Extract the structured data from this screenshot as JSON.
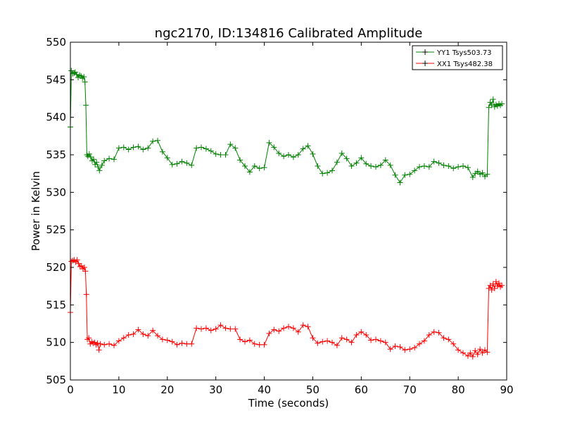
{
  "chart_data": {
    "type": "line",
    "title": "ngc2170, ID:134816 Calibrated Amplitude",
    "xlabel": "Time (seconds)",
    "ylabel": "Power in Kelvin",
    "xlim": [
      0,
      90
    ],
    "ylim": [
      505,
      550
    ],
    "xticks": [
      0,
      10,
      20,
      30,
      40,
      50,
      60,
      70,
      80,
      90
    ],
    "yticks": [
      505,
      510,
      515,
      520,
      525,
      530,
      535,
      540,
      545,
      550
    ],
    "xtick_labels": [
      "0",
      "10",
      "20",
      "30",
      "40",
      "50",
      "60",
      "70",
      "80",
      "90"
    ],
    "ytick_labels": [
      "505",
      "510",
      "515",
      "520",
      "525",
      "530",
      "535",
      "540",
      "545",
      "550"
    ],
    "grid": false,
    "legend_position": "top-right",
    "marker": "+",
    "series": [
      {
        "name": "YY1 Tsys503.73",
        "color": "#008000",
        "points": [
          [
            0,
            538.7
          ],
          [
            0.2,
            546.2
          ],
          [
            0.5,
            545.8
          ],
          [
            0.8,
            545.9
          ],
          [
            1.0,
            546.0
          ],
          [
            1.3,
            545.7
          ],
          [
            1.6,
            545.3
          ],
          [
            1.9,
            545.6
          ],
          [
            2.2,
            545.5
          ],
          [
            2.5,
            545.2
          ],
          [
            2.8,
            545.4
          ],
          [
            3.0,
            544.7
          ],
          [
            3.2,
            541.6
          ],
          [
            3.4,
            535.0
          ],
          [
            3.6,
            534.8
          ],
          [
            3.9,
            535.1
          ],
          [
            4.2,
            534.7
          ],
          [
            4.5,
            534.2
          ],
          [
            4.8,
            534.4
          ],
          [
            5.1,
            533.7
          ],
          [
            5.4,
            534.0
          ],
          [
            5.7,
            533.4
          ],
          [
            6.0,
            532.9
          ],
          [
            6.5,
            533.6
          ],
          [
            7,
            534.2
          ],
          [
            8,
            534.5
          ],
          [
            9,
            534.4
          ],
          [
            10,
            535.9
          ],
          [
            11,
            536.0
          ],
          [
            12,
            535.7
          ],
          [
            13,
            536.0
          ],
          [
            14,
            536.1
          ],
          [
            15,
            535.7
          ],
          [
            16,
            535.9
          ],
          [
            17,
            536.8
          ],
          [
            18,
            536.9
          ],
          [
            19,
            535.4
          ],
          [
            20,
            534.6
          ],
          [
            21,
            533.7
          ],
          [
            22,
            533.8
          ],
          [
            23,
            534.1
          ],
          [
            24,
            533.9
          ],
          [
            25,
            533.6
          ],
          [
            26,
            535.9
          ],
          [
            27,
            536.0
          ],
          [
            28,
            535.8
          ],
          [
            29,
            535.5
          ],
          [
            30,
            535.1
          ],
          [
            31,
            535.0
          ],
          [
            32,
            535.0
          ],
          [
            33,
            536.4
          ],
          [
            34,
            535.9
          ],
          [
            35,
            534.3
          ],
          [
            36,
            533.5
          ],
          [
            37,
            532.7
          ],
          [
            38,
            533.5
          ],
          [
            39,
            533.2
          ],
          [
            40,
            533.3
          ],
          [
            41,
            536.6
          ],
          [
            42,
            536.0
          ],
          [
            43,
            535.2
          ],
          [
            44,
            534.8
          ],
          [
            45,
            535.0
          ],
          [
            46,
            534.7
          ],
          [
            47,
            535.0
          ],
          [
            48,
            535.8
          ],
          [
            49,
            536.2
          ],
          [
            50,
            535.1
          ],
          [
            51,
            533.5
          ],
          [
            52,
            532.5
          ],
          [
            53,
            532.6
          ],
          [
            54,
            532.9
          ],
          [
            55,
            534.0
          ],
          [
            56,
            535.2
          ],
          [
            57,
            534.5
          ],
          [
            58,
            533.5
          ],
          [
            59,
            533.9
          ],
          [
            60,
            534.6
          ],
          [
            61,
            533.8
          ],
          [
            62,
            533.5
          ],
          [
            63,
            533.4
          ],
          [
            64,
            533.6
          ],
          [
            65,
            534.3
          ],
          [
            66,
            533.6
          ],
          [
            67,
            532.3
          ],
          [
            68,
            531.3
          ],
          [
            69,
            532.3
          ],
          [
            70,
            532.4
          ],
          [
            71,
            532.9
          ],
          [
            72,
            533.4
          ],
          [
            73,
            533.5
          ],
          [
            74,
            533.4
          ],
          [
            75,
            534.1
          ],
          [
            76,
            533.9
          ],
          [
            77,
            533.6
          ],
          [
            78,
            533.5
          ],
          [
            79,
            533.2
          ],
          [
            80,
            533.4
          ],
          [
            81,
            533.5
          ],
          [
            82,
            533.3
          ],
          [
            83,
            532.0
          ],
          [
            83.5,
            532.5
          ],
          [
            84,
            532.8
          ],
          [
            84.5,
            532.4
          ],
          [
            85,
            532.6
          ],
          [
            85.5,
            532.1
          ],
          [
            86,
            532.4
          ],
          [
            86.3,
            541.3
          ],
          [
            86.6,
            542.0
          ],
          [
            86.9,
            541.6
          ],
          [
            87.2,
            542.4
          ],
          [
            87.5,
            541.4
          ],
          [
            87.8,
            541.7
          ],
          [
            88.1,
            541.5
          ],
          [
            88.4,
            541.8
          ],
          [
            88.7,
            541.6
          ],
          [
            89,
            541.8
          ]
        ]
      },
      {
        "name": "XX1 Tsys482.38",
        "color": "#ff0000",
        "points": [
          [
            0,
            514.0
          ],
          [
            0.2,
            520.8
          ],
          [
            0.5,
            520.9
          ],
          [
            0.8,
            521.0
          ],
          [
            1.1,
            520.7
          ],
          [
            1.4,
            521.0
          ],
          [
            1.7,
            520.5
          ],
          [
            2.0,
            520.1
          ],
          [
            2.3,
            520.2
          ],
          [
            2.6,
            519.8
          ],
          [
            2.9,
            520.0
          ],
          [
            3.1,
            519.5
          ],
          [
            3.3,
            516.4
          ],
          [
            3.5,
            510.4
          ],
          [
            3.8,
            510.6
          ],
          [
            4.1,
            509.8
          ],
          [
            4.4,
            510.1
          ],
          [
            4.7,
            509.9
          ],
          [
            5.0,
            510.0
          ],
          [
            5.3,
            509.7
          ],
          [
            5.6,
            509.9
          ],
          [
            5.9,
            509.0
          ],
          [
            6.2,
            509.8
          ],
          [
            7,
            509.7
          ],
          [
            8,
            509.8
          ],
          [
            9,
            509.6
          ],
          [
            10,
            510.2
          ],
          [
            11,
            510.6
          ],
          [
            12,
            511.0
          ],
          [
            13,
            511.1
          ],
          [
            14,
            511.7
          ],
          [
            15,
            511.1
          ],
          [
            16,
            510.9
          ],
          [
            17,
            511.6
          ],
          [
            18,
            510.9
          ],
          [
            19,
            510.4
          ],
          [
            20,
            510.3
          ],
          [
            21,
            510.1
          ],
          [
            22,
            509.7
          ],
          [
            23,
            509.9
          ],
          [
            24,
            509.8
          ],
          [
            25,
            509.8
          ],
          [
            26,
            511.9
          ],
          [
            27,
            511.8
          ],
          [
            28,
            511.9
          ],
          [
            29,
            511.6
          ],
          [
            30,
            511.8
          ],
          [
            31,
            512.3
          ],
          [
            32,
            511.9
          ],
          [
            33,
            511.8
          ],
          [
            34,
            511.8
          ],
          [
            35,
            510.4
          ],
          [
            36,
            510.1
          ],
          [
            37,
            510.3
          ],
          [
            38,
            509.8
          ],
          [
            39,
            509.7
          ],
          [
            40,
            509.7
          ],
          [
            41,
            511.2
          ],
          [
            42,
            511.7
          ],
          [
            43,
            511.5
          ],
          [
            44,
            511.9
          ],
          [
            45,
            512.1
          ],
          [
            46,
            511.9
          ],
          [
            47,
            511.4
          ],
          [
            48,
            512.3
          ],
          [
            49,
            512.1
          ],
          [
            50,
            510.6
          ],
          [
            51,
            509.9
          ],
          [
            52,
            510.1
          ],
          [
            53,
            510.2
          ],
          [
            54,
            510.0
          ],
          [
            55,
            509.6
          ],
          [
            56,
            510.6
          ],
          [
            57,
            510.4
          ],
          [
            58,
            510.0
          ],
          [
            59,
            511.0
          ],
          [
            60,
            511.4
          ],
          [
            61,
            511.0
          ],
          [
            62,
            510.3
          ],
          [
            63,
            510.4
          ],
          [
            64,
            510.2
          ],
          [
            65,
            510.0
          ],
          [
            66,
            509.1
          ],
          [
            67,
            509.5
          ],
          [
            68,
            509.4
          ],
          [
            69,
            509.0
          ],
          [
            70,
            509.1
          ],
          [
            71,
            509.3
          ],
          [
            72,
            509.8
          ],
          [
            73,
            510.2
          ],
          [
            74,
            511.0
          ],
          [
            75,
            511.4
          ],
          [
            76,
            511.3
          ],
          [
            77,
            510.6
          ],
          [
            78,
            510.4
          ],
          [
            79,
            509.8
          ],
          [
            80,
            509.0
          ],
          [
            81,
            508.6
          ],
          [
            82,
            508.2
          ],
          [
            82.5,
            508.6
          ],
          [
            83,
            508.1
          ],
          [
            83.5,
            508.9
          ],
          [
            84,
            508.4
          ],
          [
            84.5,
            509.1
          ],
          [
            85,
            508.6
          ],
          [
            85.5,
            509.0
          ],
          [
            86,
            508.7
          ],
          [
            86.3,
            517.2
          ],
          [
            86.6,
            517.6
          ],
          [
            86.9,
            517.0
          ],
          [
            87.2,
            517.8
          ],
          [
            87.5,
            517.2
          ],
          [
            87.8,
            518.1
          ],
          [
            88.1,
            517.5
          ],
          [
            88.4,
            517.9
          ],
          [
            88.7,
            517.4
          ],
          [
            89,
            517.6
          ]
        ]
      }
    ]
  }
}
